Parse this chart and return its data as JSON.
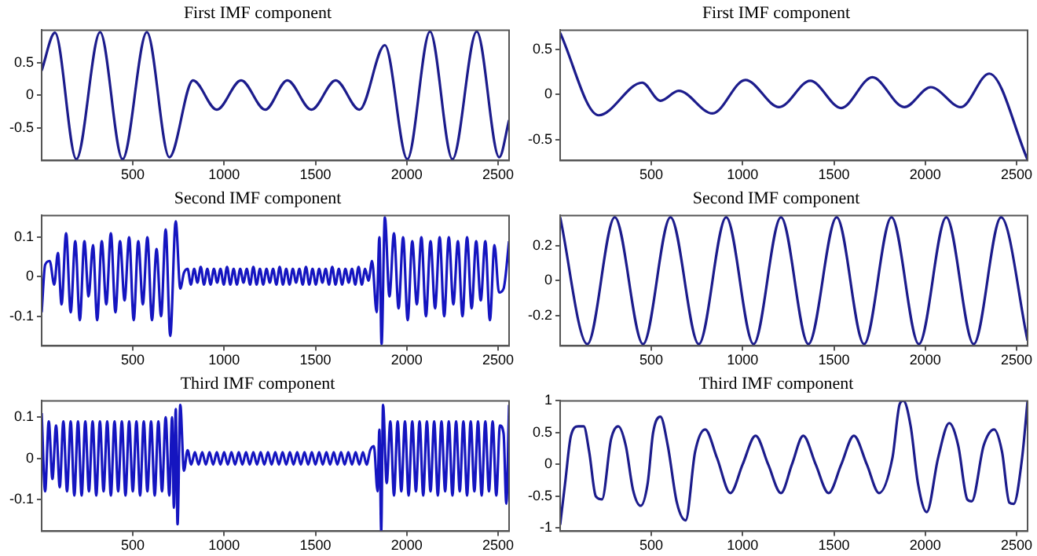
{
  "chart_data": [
    {
      "type": "line",
      "title": "First IMF component",
      "color": "#1c1c8c",
      "xlim": [
        1,
        2560
      ],
      "xticks": [
        500,
        1000,
        1500,
        2000,
        2500
      ],
      "ylim": [
        -1,
        1
      ],
      "yticks": [
        -0.5,
        0,
        0.5
      ],
      "x": [
        1,
        74,
        191,
        321,
        444,
        577,
        700,
        830,
        960,
        1093,
        1225,
        1346,
        1478,
        1611,
        1741,
        1880,
        2003,
        2127,
        2250,
        2383,
        2506,
        2560
      ],
      "values": [
        0.38,
        0.96,
        -0.98,
        0.97,
        -0.98,
        0.97,
        -0.95,
        0.23,
        -0.22,
        0.23,
        -0.22,
        0.23,
        -0.22,
        0.23,
        -0.22,
        0.77,
        -0.98,
        0.98,
        -0.98,
        0.98,
        -0.95,
        -0.38
      ]
    },
    {
      "type": "line",
      "title": "First IMF component",
      "color": "#1c1c8c",
      "xlim": [
        1,
        2560
      ],
      "xticks": [
        500,
        1000,
        1500,
        2000,
        2500
      ],
      "ylim": [
        -0.73,
        0.71
      ],
      "yticks": [
        -0.5,
        0,
        0.5
      ],
      "x": [
        1,
        212,
        450,
        550,
        650,
        835,
        1015,
        1200,
        1370,
        1540,
        1710,
        1885,
        2030,
        2195,
        2350,
        2560
      ],
      "values": [
        0.68,
        -0.23,
        0.13,
        -0.07,
        0.04,
        -0.21,
        0.16,
        -0.14,
        0.15,
        -0.15,
        0.19,
        -0.14,
        0.08,
        -0.14,
        0.23,
        -0.72
      ]
    },
    {
      "type": "line",
      "title": "Second IMF component",
      "color": "#1515c0",
      "xlim": [
        1,
        2560
      ],
      "xticks": [
        500,
        1000,
        1500,
        2000,
        2500
      ],
      "ylim": [
        -0.175,
        0.155
      ],
      "yticks": [
        -0.1,
        0,
        0.1
      ],
      "x": [
        1,
        20,
        45,
        70,
        90,
        110,
        135,
        160,
        185,
        210,
        235,
        258,
        282,
        305,
        330,
        355,
        380,
        405,
        430,
        455,
        480,
        505,
        530,
        555,
        580,
        605,
        630,
        655,
        680,
        705,
        735,
        760,
        780,
        800,
        818,
        836,
        854,
        872,
        890,
        908,
        926,
        944,
        962,
        980,
        998,
        1016,
        1034,
        1052,
        1070,
        1088,
        1106,
        1124,
        1142,
        1160,
        1178,
        1196,
        1214,
        1232,
        1250,
        1268,
        1286,
        1304,
        1322,
        1340,
        1358,
        1376,
        1394,
        1412,
        1430,
        1448,
        1466,
        1484,
        1502,
        1520,
        1538,
        1556,
        1574,
        1592,
        1610,
        1628,
        1646,
        1664,
        1682,
        1700,
        1718,
        1736,
        1754,
        1772,
        1790,
        1810,
        1835,
        1850,
        1862,
        1880,
        1905,
        1930,
        1955,
        1980,
        2005,
        2030,
        2055,
        2080,
        2105,
        2130,
        2155,
        2180,
        2205,
        2230,
        2255,
        2280,
        2305,
        2330,
        2355,
        2380,
        2405,
        2430,
        2455,
        2480,
        2505,
        2530,
        2560
      ],
      "values": [
        -0.09,
        0.03,
        0.04,
        -0.02,
        0.06,
        -0.07,
        0.11,
        -0.09,
        0.09,
        -0.11,
        0.09,
        -0.05,
        0.08,
        -0.11,
        0.09,
        -0.07,
        0.11,
        -0.09,
        0.09,
        -0.06,
        0.1,
        -0.11,
        0.09,
        -0.07,
        0.1,
        -0.11,
        0.07,
        -0.1,
        0.12,
        -0.15,
        0.14,
        -0.03,
        0.01,
        0.02,
        -0.02,
        0.02,
        -0.015,
        0.025,
        -0.02,
        0.02,
        -0.02,
        0.02,
        -0.015,
        0.02,
        -0.02,
        0.025,
        -0.02,
        0.02,
        -0.02,
        0.02,
        -0.015,
        0.02,
        -0.02,
        0.025,
        -0.02,
        0.02,
        -0.02,
        0.02,
        -0.015,
        0.02,
        -0.02,
        0.025,
        -0.02,
        0.02,
        -0.02,
        0.02,
        -0.015,
        0.02,
        -0.02,
        0.025,
        -0.02,
        0.02,
        -0.02,
        0.02,
        -0.015,
        0.02,
        -0.02,
        0.025,
        -0.02,
        0.02,
        -0.02,
        0.02,
        -0.015,
        0.02,
        -0.02,
        0.025,
        -0.02,
        0.02,
        -0.01,
        0.04,
        -0.09,
        0.1,
        -0.17,
        0.15,
        -0.05,
        0.11,
        -0.08,
        0.1,
        -0.11,
        0.09,
        -0.07,
        0.1,
        -0.1,
        0.09,
        -0.08,
        0.1,
        -0.1,
        0.1,
        -0.07,
        0.09,
        -0.1,
        0.1,
        -0.08,
        0.09,
        -0.06,
        0.09,
        -0.11,
        0.08,
        -0.04,
        -0.03,
        0.09
      ]
    },
    {
      "type": "line",
      "title": "Second IMF component",
      "color": "#1c1c8c",
      "xlim": [
        1,
        2560
      ],
      "xticks": [
        500,
        1000,
        1500,
        2000,
        2500
      ],
      "ylim": [
        -0.37,
        0.37
      ],
      "yticks": [
        -0.2,
        0,
        0.2
      ],
      "x": [
        1,
        150,
        300,
        455,
        605,
        760,
        910,
        1060,
        1210,
        1360,
        1515,
        1665,
        1815,
        1965,
        2115,
        2265,
        2415,
        2560
      ],
      "values": [
        0.36,
        -0.36,
        0.36,
        -0.36,
        0.36,
        -0.36,
        0.36,
        -0.36,
        0.36,
        -0.36,
        0.36,
        -0.36,
        0.36,
        -0.36,
        0.36,
        -0.36,
        0.36,
        -0.34
      ]
    },
    {
      "type": "line",
      "title": "Third IMF component",
      "color": "#1515c0",
      "xlim": [
        1,
        2560
      ],
      "xticks": [
        500,
        1000,
        1500,
        2000,
        2500
      ],
      "ylim": [
        -0.177,
        0.14
      ],
      "yticks": [
        -0.1,
        0,
        0.1
      ],
      "x": [
        1,
        20,
        40,
        60,
        80,
        100,
        120,
        140,
        160,
        180,
        200,
        220,
        240,
        260,
        280,
        300,
        320,
        340,
        360,
        380,
        400,
        420,
        440,
        460,
        480,
        500,
        520,
        540,
        560,
        580,
        600,
        620,
        640,
        660,
        680,
        700,
        715,
        725,
        735,
        745,
        760,
        780,
        800,
        820,
        840,
        860,
        880,
        900,
        920,
        940,
        960,
        980,
        1000,
        1020,
        1040,
        1060,
        1080,
        1100,
        1120,
        1140,
        1160,
        1180,
        1200,
        1220,
        1240,
        1260,
        1280,
        1300,
        1320,
        1340,
        1360,
        1380,
        1400,
        1420,
        1440,
        1460,
        1480,
        1500,
        1520,
        1540,
        1560,
        1580,
        1600,
        1620,
        1640,
        1660,
        1680,
        1700,
        1720,
        1740,
        1760,
        1780,
        1800,
        1820,
        1840,
        1850,
        1860,
        1870,
        1890,
        1910,
        1930,
        1950,
        1970,
        1990,
        2010,
        2030,
        2050,
        2070,
        2090,
        2110,
        2130,
        2150,
        2170,
        2190,
        2210,
        2230,
        2250,
        2270,
        2290,
        2310,
        2330,
        2350,
        2370,
        2390,
        2410,
        2430,
        2450,
        2470,
        2490,
        2510,
        2530,
        2545,
        2560
      ],
      "values": [
        0.11,
        -0.08,
        0.09,
        -0.05,
        0.08,
        -0.07,
        0.09,
        -0.08,
        0.09,
        -0.09,
        0.09,
        -0.09,
        0.09,
        -0.08,
        0.09,
        -0.09,
        0.09,
        -0.08,
        0.09,
        -0.09,
        0.09,
        -0.08,
        0.09,
        -0.09,
        0.09,
        -0.08,
        0.09,
        -0.09,
        0.09,
        -0.08,
        0.09,
        -0.09,
        0.09,
        -0.08,
        0.1,
        -0.09,
        0.1,
        -0.12,
        0.12,
        -0.16,
        0.13,
        -0.03,
        0.02,
        -0.015,
        0.015,
        -0.015,
        0.015,
        -0.015,
        0.015,
        -0.015,
        0.015,
        -0.015,
        0.015,
        -0.015,
        0.015,
        -0.015,
        0.015,
        -0.015,
        0.015,
        -0.015,
        0.015,
        -0.015,
        0.015,
        -0.015,
        0.015,
        -0.015,
        0.015,
        -0.015,
        0.015,
        -0.015,
        0.015,
        -0.015,
        0.015,
        -0.015,
        0.015,
        -0.015,
        0.015,
        -0.015,
        0.015,
        -0.015,
        0.015,
        -0.015,
        0.015,
        -0.015,
        0.015,
        -0.015,
        0.015,
        -0.015,
        0.015,
        -0.015,
        0.015,
        -0.015,
        0.02,
        0.03,
        -0.08,
        0.07,
        -0.177,
        0.13,
        -0.06,
        0.09,
        -0.09,
        0.09,
        -0.08,
        0.09,
        -0.09,
        0.09,
        -0.08,
        0.09,
        -0.09,
        0.09,
        -0.08,
        0.09,
        -0.09,
        0.09,
        -0.08,
        0.09,
        -0.09,
        0.09,
        -0.08,
        0.09,
        -0.09,
        0.09,
        -0.08,
        0.09,
        -0.09,
        0.09,
        -0.08,
        0.09,
        -0.09,
        0.08,
        0.06,
        -0.11,
        0.13
      ]
    },
    {
      "type": "line",
      "title": "Third IMF component",
      "color": "#1c1c8c",
      "xlim": [
        1,
        2560
      ],
      "xticks": [
        500,
        1000,
        1500,
        2000,
        2500
      ],
      "ylim": [
        -1.05,
        1
      ],
      "yticks": [
        -1,
        -0.5,
        0,
        0.5,
        1
      ],
      "x": [
        1,
        28,
        60,
        100,
        130,
        160,
        196,
        230,
        280,
        319,
        360,
        400,
        442,
        480,
        510,
        550,
        590,
        640,
        688,
        740,
        795,
        860,
        933,
        1000,
        1071,
        1140,
        1210,
        1270,
        1332,
        1400,
        1471,
        1540,
        1609,
        1680,
        1747,
        1820,
        1860,
        1880,
        1920,
        1960,
        2008,
        2070,
        2131,
        2180,
        2230,
        2254,
        2320,
        2377,
        2420,
        2460,
        2484,
        2530,
        2560
      ],
      "values": [
        -0.95,
        -0.3,
        0.45,
        0.6,
        0.6,
        0.2,
        -0.5,
        -0.55,
        0.4,
        0.6,
        0.3,
        -0.4,
        -0.65,
        -0.3,
        0.5,
        0.75,
        0.3,
        -0.6,
        -0.88,
        0.2,
        0.55,
        0.1,
        -0.45,
        0,
        0.45,
        0,
        -0.45,
        0,
        0.45,
        0,
        -0.45,
        0,
        0.45,
        0,
        -0.45,
        0.1,
        0.95,
        1,
        0.6,
        -0.3,
        -0.75,
        0.1,
        0.65,
        0.3,
        -0.55,
        -0.58,
        0.3,
        0.55,
        0.2,
        -0.6,
        -0.62,
        0.1,
        1
      ]
    }
  ]
}
